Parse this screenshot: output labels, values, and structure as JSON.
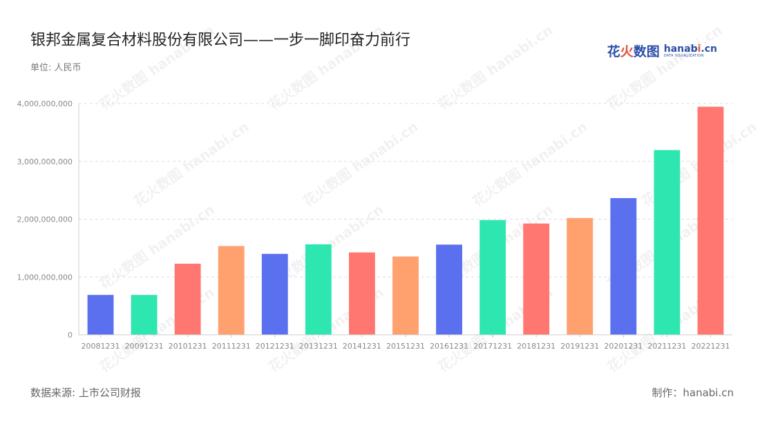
{
  "header": {
    "title": "银邦金属复合材料股份有限公司——一步一脚印奋力前行",
    "unit_label": "单位: 人民币"
  },
  "logo": {
    "cn_part1": "花",
    "cn_part2": "火",
    "cn_part3": "数图",
    "en_main_a": "hanab",
    "en_main_b": "i",
    "en_main_c": ".cn",
    "en_sub": "DATA VISUALIZATION"
  },
  "footer": {
    "source": "数据来源: 上市公司财报",
    "credit": "制作：hanabi.cn"
  },
  "watermark": "花火数图 hanabi.cn",
  "colors": {
    "blue": "#5b70ef",
    "green": "#2ee6b0",
    "red": "#ff7770",
    "orange": "#ffa06f",
    "grid": "#dddddd",
    "axis": "#cccccc"
  },
  "chart_data": {
    "type": "bar",
    "categories": [
      "20081231",
      "20091231",
      "20101231",
      "20111231",
      "20121231",
      "20131231",
      "20141231",
      "20151231",
      "20161231",
      "20171231",
      "20181231",
      "20191231",
      "20201231",
      "20211231",
      "20221231"
    ],
    "values": [
      690000000,
      690000000,
      1230000000,
      1535000000,
      1400000000,
      1565000000,
      1425000000,
      1355000000,
      1560000000,
      1985000000,
      1925000000,
      2020000000,
      2365000000,
      3195000000,
      3945000000
    ],
    "bar_colors": [
      "#5b70ef",
      "#2ee6b0",
      "#ff7770",
      "#ffa06f",
      "#5b70ef",
      "#2ee6b0",
      "#ff7770",
      "#ffa06f",
      "#5b70ef",
      "#2ee6b0",
      "#ff7770",
      "#ffa06f",
      "#5b70ef",
      "#2ee6b0",
      "#ff7770"
    ],
    "y_ticks": [
      0,
      1000000000,
      2000000000,
      3000000000,
      4000000000
    ],
    "y_tick_labels": [
      "0",
      "1,000,000,000",
      "2,000,000,000",
      "3,000,000,000",
      "4,000,000,000"
    ],
    "ylim": [
      0,
      4000000000
    ],
    "grid": true
  }
}
